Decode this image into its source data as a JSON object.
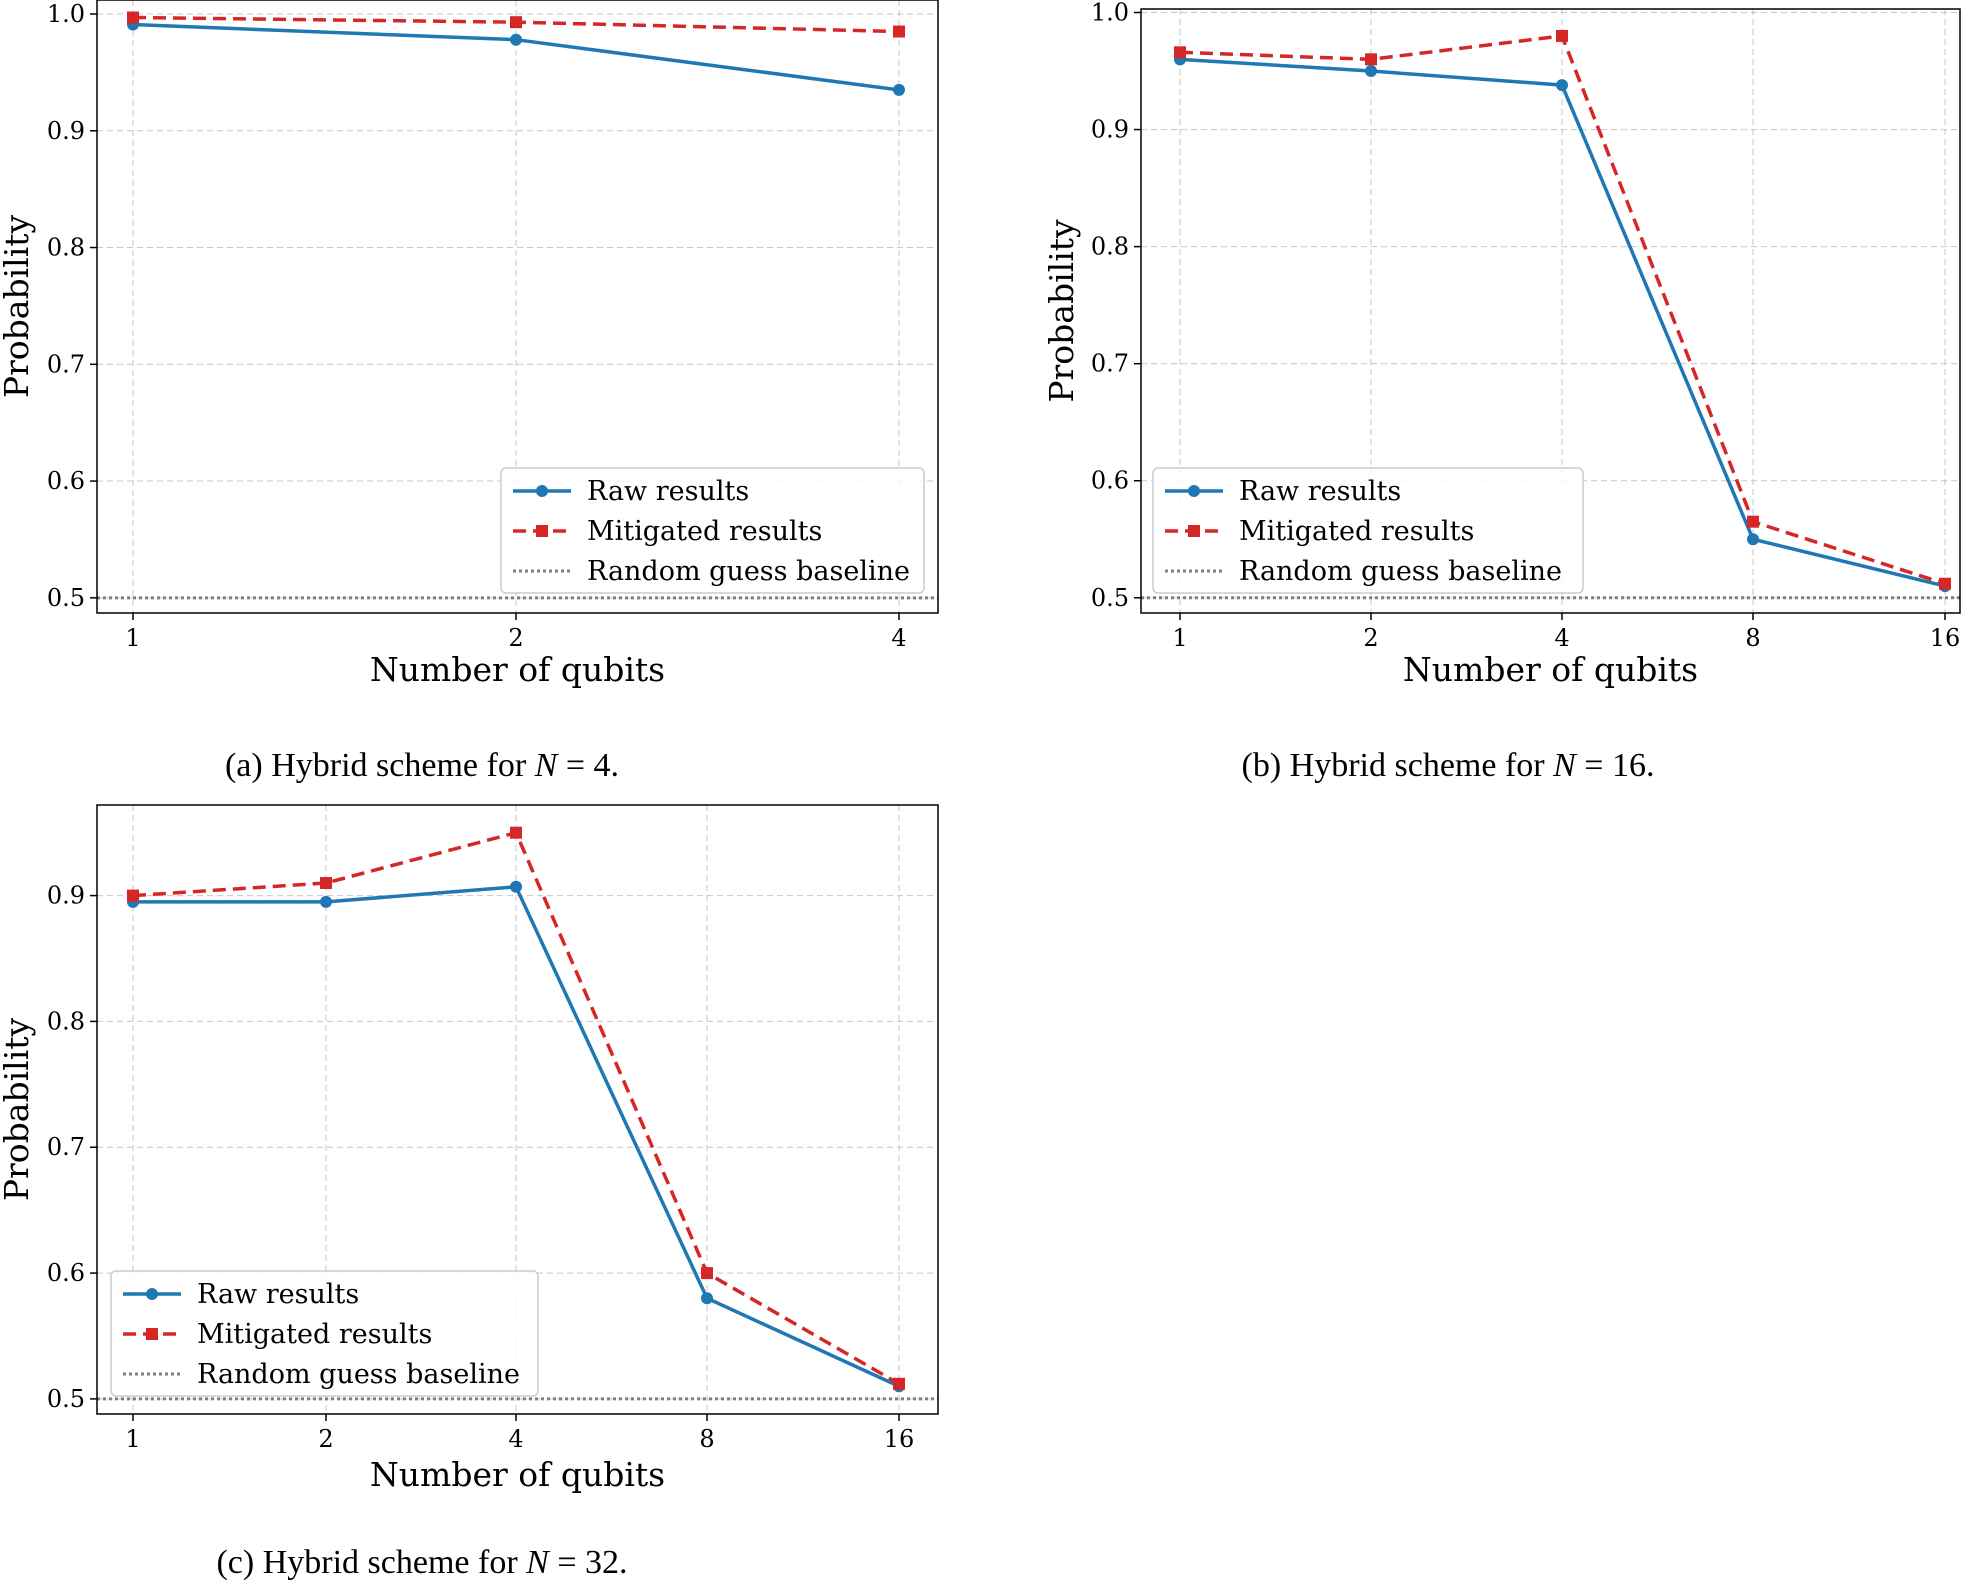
{
  "chart_data": [
    {
      "type": "line",
      "panel": "a",
      "caption": {
        "prefix": "(a) Hybrid scheme for ",
        "var": "N",
        "suffix": " =  4."
      },
      "categories": [
        "1",
        "2",
        "4"
      ],
      "series": [
        {
          "name": "Raw results",
          "color": "#1f77b4",
          "style": "solid",
          "marker": "circle",
          "values": [
            0.991,
            0.978,
            0.935
          ]
        },
        {
          "name": "Mitigated results",
          "color": "#d62728",
          "style": "dashed",
          "marker": "square",
          "values": [
            0.997,
            0.993,
            0.985
          ]
        }
      ],
      "baseline": {
        "name": "Random guess baseline",
        "color": "#808080",
        "value": 0.5
      },
      "xlabel": "Number of qubits",
      "ylabel": "Probability",
      "ylim": [
        0.487,
        1.012
      ],
      "yticks": [
        "0.5",
        "0.6",
        "0.7",
        "0.8",
        "0.9",
        "1.0"
      ],
      "grid": true,
      "legend": "lower-right"
    },
    {
      "type": "line",
      "panel": "b",
      "caption": {
        "prefix": "(b) Hybrid scheme for ",
        "var": "N",
        "suffix": " =  16."
      },
      "categories": [
        "1",
        "2",
        "4",
        "8",
        "16"
      ],
      "series": [
        {
          "name": "Raw results",
          "color": "#1f77b4",
          "style": "solid",
          "marker": "circle",
          "values": [
            0.96,
            0.95,
            0.938,
            0.55,
            0.51
          ]
        },
        {
          "name": "Mitigated results",
          "color": "#d62728",
          "style": "dashed",
          "marker": "square",
          "values": [
            0.966,
            0.96,
            0.98,
            0.565,
            0.512
          ]
        }
      ],
      "baseline": {
        "name": "Random guess baseline",
        "color": "#808080",
        "value": 0.5
      },
      "xlabel": "Number of qubits",
      "ylabel": "Probability",
      "ylim": [
        0.487,
        1.003
      ],
      "yticks": [
        "0.5",
        "0.6",
        "0.7",
        "0.8",
        "0.9",
        "1.0"
      ],
      "grid": true,
      "legend": "lower-left"
    },
    {
      "type": "line",
      "panel": "c",
      "caption": {
        "prefix": "(c) Hybrid scheme for ",
        "var": "N",
        "suffix": " =  32."
      },
      "categories": [
        "1",
        "2",
        "4",
        "8",
        "16"
      ],
      "series": [
        {
          "name": "Raw results",
          "color": "#1f77b4",
          "style": "solid",
          "marker": "circle",
          "values": [
            0.895,
            0.895,
            0.907,
            0.58,
            0.51
          ]
        },
        {
          "name": "Mitigated results",
          "color": "#d62728",
          "style": "dashed",
          "marker": "square",
          "values": [
            0.9,
            0.91,
            0.95,
            0.6,
            0.512
          ]
        }
      ],
      "baseline": {
        "name": "Random guess baseline",
        "color": "#808080",
        "value": 0.5
      },
      "xlabel": "Number of qubits",
      "ylabel": "Probability",
      "ylim": [
        0.488,
        0.972
      ],
      "yticks": [
        "0.5",
        "0.6",
        "0.7",
        "0.8",
        "0.9"
      ],
      "grid": true,
      "legend": "lower-left"
    }
  ]
}
